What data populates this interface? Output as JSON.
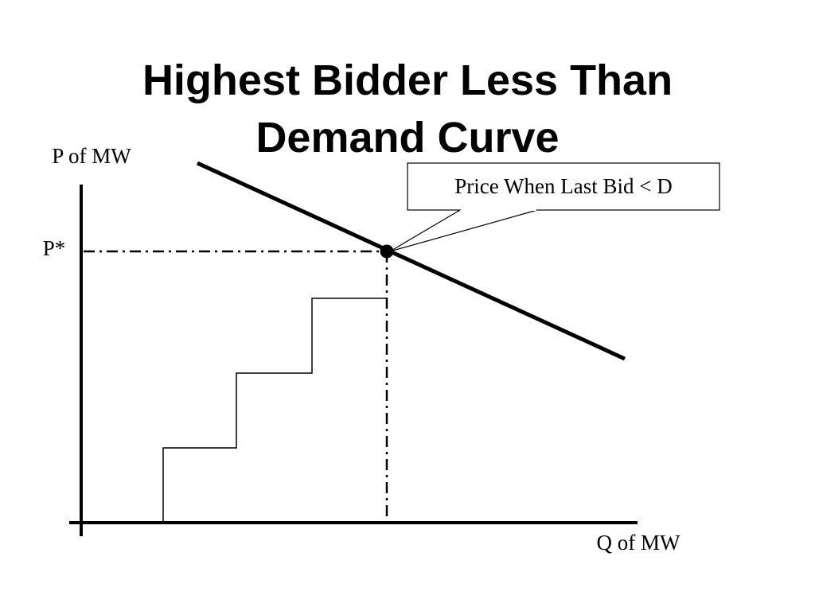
{
  "title": {
    "lines": [
      "Highest Bidder Less Than",
      "Demand Curve"
    ]
  },
  "labels": {
    "y_axis": "P of MW",
    "price_star": "P*",
    "x_axis": "Q of MW",
    "callout": "Price When Last Bid < D"
  }
}
